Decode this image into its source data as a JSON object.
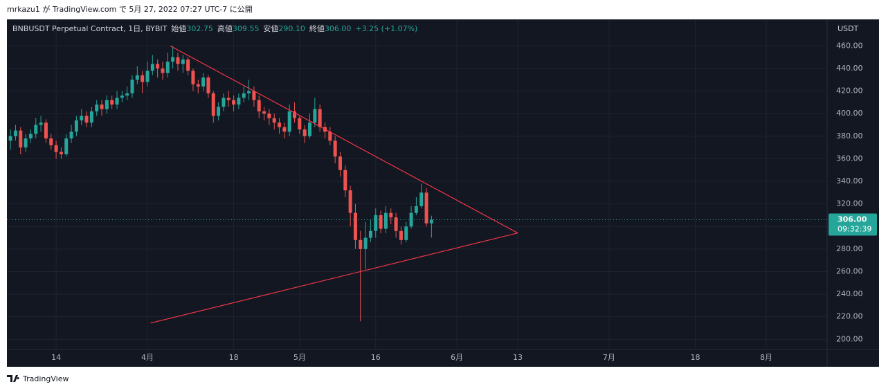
{
  "page": {
    "published": "mrkazu1 が TradingView.com で 5月 27, 2022 07:27 UTC-7 に公開",
    "footer": "TradingView"
  },
  "chart_data": {
    "type": "candlestick",
    "symbol": "BNBUSDT Perpetual Contract, 1日, BYBIT",
    "ohlc_header": [
      {
        "label": "始値",
        "value": "302.75"
      },
      {
        "label": "高値",
        "value": "309.55"
      },
      {
        "label": "安値",
        "value": "290.10"
      },
      {
        "label": "終値",
        "value": "306.00"
      }
    ],
    "change": "+3.25 (+1.07%)",
    "currency": "USDT",
    "last_price_label": "306.00",
    "countdown": "09:32:39",
    "up_color": "#26a69a",
    "down_color": "#ef5350",
    "x": [
      0,
      1,
      2,
      3,
      4,
      5,
      6,
      7,
      8,
      9,
      10,
      11,
      12,
      13,
      14,
      15,
      16,
      17,
      18,
      19,
      20,
      21,
      22,
      23,
      24,
      25,
      26,
      27,
      28,
      29,
      30,
      31,
      32,
      33,
      34,
      35,
      36,
      37,
      38,
      39,
      40,
      41,
      42,
      43,
      44,
      45,
      46,
      47,
      48,
      49,
      50,
      51,
      52,
      53,
      54,
      55,
      56,
      57,
      58,
      59,
      60,
      61,
      62,
      63,
      64,
      65,
      66,
      67,
      68,
      69,
      70,
      71,
      72,
      73,
      74,
      75,
      76,
      77,
      78,
      79,
      80,
      81,
      82,
      83
    ],
    "open": [
      376,
      380,
      385,
      370,
      378,
      382,
      390,
      392,
      378,
      372,
      366,
      364,
      378,
      384,
      394,
      398,
      392,
      402,
      408,
      404,
      412,
      408,
      414,
      416,
      418,
      430,
      434,
      428,
      438,
      444,
      440,
      436,
      446,
      450,
      444,
      448,
      438,
      426,
      424,
      432,
      418,
      398,
      406,
      414,
      412,
      408,
      414,
      418,
      420,
      412,
      402,
      400,
      396,
      392,
      388,
      384,
      402,
      396,
      386,
      380,
      392,
      404,
      388,
      384,
      376,
      362,
      350,
      332,
      312,
      288,
      280,
      290,
      296,
      310,
      298,
      312,
      308,
      296,
      288,
      300,
      312,
      318,
      330,
      302.75
    ],
    "high": [
      386,
      390,
      388,
      382,
      386,
      396,
      398,
      395,
      382,
      376,
      370,
      382,
      390,
      398,
      404,
      402,
      406,
      412,
      412,
      416,
      416,
      420,
      420,
      424,
      434,
      442,
      438,
      446,
      452,
      448,
      446,
      454,
      460,
      454,
      452,
      450,
      440,
      430,
      436,
      434,
      420,
      410,
      418,
      420,
      416,
      418,
      424,
      430,
      424,
      416,
      406,
      404,
      400,
      396,
      392,
      408,
      410,
      398,
      390,
      400,
      414,
      408,
      392,
      388,
      380,
      366,
      354,
      336,
      320,
      296,
      304,
      306,
      316,
      314,
      318,
      316,
      312,
      300,
      304,
      318,
      326,
      338,
      334,
      309.55
    ],
    "low": [
      368,
      376,
      364,
      366,
      374,
      378,
      384,
      374,
      368,
      360,
      360,
      362,
      374,
      380,
      390,
      388,
      388,
      398,
      398,
      400,
      404,
      404,
      410,
      412,
      414,
      426,
      418,
      424,
      434,
      432,
      430,
      432,
      440,
      438,
      436,
      434,
      420,
      418,
      420,
      414,
      392,
      394,
      402,
      406,
      402,
      404,
      410,
      412,
      406,
      396,
      394,
      390,
      386,
      382,
      378,
      380,
      392,
      382,
      374,
      378,
      388,
      384,
      378,
      372,
      356,
      344,
      326,
      300,
      280,
      216,
      262,
      286,
      290,
      294,
      294,
      302,
      290,
      284,
      286,
      298,
      310,
      316,
      300,
      290.1
    ],
    "close": [
      380,
      385,
      370,
      378,
      382,
      390,
      392,
      378,
      372,
      366,
      364,
      378,
      384,
      394,
      398,
      392,
      402,
      408,
      404,
      412,
      408,
      414,
      416,
      418,
      430,
      434,
      428,
      438,
      444,
      440,
      436,
      446,
      450,
      444,
      448,
      438,
      426,
      424,
      432,
      418,
      398,
      406,
      414,
      412,
      408,
      414,
      418,
      420,
      412,
      402,
      400,
      396,
      392,
      388,
      384,
      402,
      396,
      386,
      380,
      392,
      404,
      388,
      384,
      376,
      362,
      350,
      332,
      312,
      288,
      280,
      290,
      296,
      310,
      298,
      312,
      308,
      296,
      288,
      300,
      312,
      318,
      330,
      302.75,
      306
    ],
    "xlim": [
      -0.7,
      161
    ],
    "xticks": [
      {
        "value": 9,
        "label": "14"
      },
      {
        "value": 27,
        "label": "4月"
      },
      {
        "value": 44,
        "label": "18"
      },
      {
        "value": 57,
        "label": "5月"
      },
      {
        "value": 72,
        "label": "16"
      },
      {
        "value": 88,
        "label": "6月"
      },
      {
        "value": 100,
        "label": "13"
      },
      {
        "value": 118,
        "label": "7月"
      },
      {
        "value": 135,
        "label": "18"
      },
      {
        "value": 149,
        "label": "8月"
      }
    ],
    "ylim": [
      191,
      483.5
    ],
    "yticks": [
      {
        "value": 200,
        "label": "200.00"
      },
      {
        "value": 220,
        "label": "220.00"
      },
      {
        "value": 240,
        "label": "240.00"
      },
      {
        "value": 260,
        "label": "260.00"
      },
      {
        "value": 280,
        "label": "280.00"
      },
      {
        "value": 300,
        "label": "300.00"
      },
      {
        "value": 320,
        "label": "320.00"
      },
      {
        "value": 340,
        "label": "340.00"
      },
      {
        "value": 360,
        "label": "360.00"
      },
      {
        "value": 380,
        "label": "380.00"
      },
      {
        "value": 400,
        "label": "400.00"
      },
      {
        "value": 420,
        "label": "420.00"
      },
      {
        "value": 440,
        "label": "440.00"
      },
      {
        "value": 460,
        "label": "460.00"
      }
    ],
    "grid": true,
    "trendlines": [
      {
        "color": "#f23645",
        "x": [
          31.5,
          100
        ],
        "y": [
          460,
          294.2
        ]
      },
      {
        "color": "#f23645",
        "x": [
          27.6,
          100
        ],
        "y": [
          214.4,
          294.2
        ]
      }
    ]
  }
}
